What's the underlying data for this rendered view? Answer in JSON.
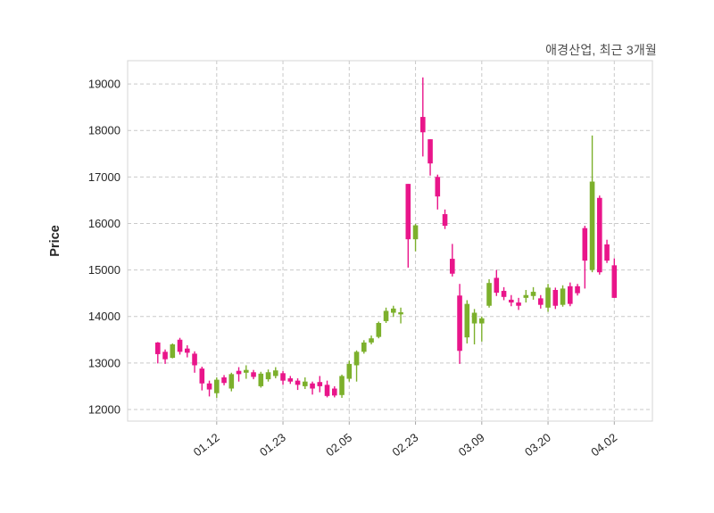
{
  "chart_data": {
    "type": "candlestick",
    "title": "애경산업, 최근 3개월",
    "ylabel": "Price",
    "grid": true,
    "legend": "none",
    "ylim": [
      11750,
      19500
    ],
    "y_ticks": [
      12000,
      13000,
      14000,
      15000,
      16000,
      17000,
      18000,
      19000
    ],
    "x_tick_labels": [
      "01.12",
      "01.23",
      "02.05",
      "02.23",
      "03.09",
      "03.20",
      "04.02"
    ],
    "x_tick_indices": [
      8,
      17,
      26,
      35,
      44,
      53,
      62
    ],
    "candle_format": [
      "open",
      "high",
      "low",
      "close"
    ],
    "colors": {
      "up": "#7cb02c",
      "down": "#e9158a",
      "grid": "#c9c9c9",
      "border": "#d4d4d4",
      "tick_mark": "#a6a6a6",
      "tick_text": "#262626",
      "title_text": "#4d4d4d",
      "background": "#ffffff"
    },
    "candles": [
      [
        13440,
        13450,
        12990,
        13190
      ],
      [
        13240,
        13290,
        12980,
        13080
      ],
      [
        13110,
        13420,
        13100,
        13400
      ],
      [
        13500,
        13540,
        13180,
        13240
      ],
      [
        13310,
        13380,
        13120,
        13220
      ],
      [
        13200,
        13250,
        12790,
        12950
      ],
      [
        12880,
        12920,
        12410,
        12560
      ],
      [
        12560,
        12620,
        12280,
        12430
      ],
      [
        12350,
        12690,
        12250,
        12640
      ],
      [
        12690,
        12740,
        12520,
        12570
      ],
      [
        12450,
        12790,
        12390,
        12760
      ],
      [
        12830,
        12910,
        12600,
        12760
      ],
      [
        12790,
        12950,
        12660,
        12850
      ],
      [
        12800,
        12850,
        12650,
        12700
      ],
      [
        12500,
        12810,
        12470,
        12770
      ],
      [
        12650,
        12860,
        12600,
        12800
      ],
      [
        12720,
        12910,
        12670,
        12840
      ],
      [
        12780,
        12830,
        12530,
        12620
      ],
      [
        12670,
        12720,
        12550,
        12600
      ],
      [
        12620,
        12670,
        12420,
        12530
      ],
      [
        12500,
        12690,
        12440,
        12600
      ],
      [
        12560,
        12600,
        12320,
        12450
      ],
      [
        12590,
        12720,
        12370,
        12500
      ],
      [
        12530,
        12620,
        12260,
        12290
      ],
      [
        12450,
        12500,
        12260,
        12300
      ],
      [
        12310,
        12750,
        12250,
        12720
      ],
      [
        12660,
        13050,
        12600,
        12980
      ],
      [
        12950,
        13270,
        12600,
        13240
      ],
      [
        13240,
        13490,
        13200,
        13440
      ],
      [
        13440,
        13590,
        13400,
        13530
      ],
      [
        13560,
        13890,
        13530,
        13860
      ],
      [
        13900,
        14190,
        13860,
        14120
      ],
      [
        14080,
        14230,
        13990,
        14170
      ],
      [
        14045,
        14190,
        13850,
        14090
      ],
      [
        16850,
        16850,
        15050,
        15660
      ],
      [
        15660,
        15990,
        15400,
        15960
      ],
      [
        18290,
        19140,
        17440,
        17960
      ],
      [
        17810,
        17810,
        17030,
        17290
      ],
      [
        17000,
        17050,
        16300,
        16580
      ],
      [
        16200,
        16300,
        15880,
        15950
      ],
      [
        15240,
        15560,
        14860,
        14920
      ],
      [
        14450,
        14700,
        12980,
        13260
      ],
      [
        13550,
        14350,
        13420,
        14270
      ],
      [
        13850,
        14160,
        13400,
        14080
      ],
      [
        13850,
        14000,
        13460,
        13960
      ],
      [
        14230,
        14800,
        14190,
        14720
      ],
      [
        14830,
        15000,
        14440,
        14510
      ],
      [
        14550,
        14630,
        14350,
        14420
      ],
      [
        14360,
        14460,
        14220,
        14300
      ],
      [
        14300,
        14400,
        14140,
        14230
      ],
      [
        14400,
        14570,
        14300,
        14460
      ],
      [
        14440,
        14630,
        14360,
        14530
      ],
      [
        14390,
        14460,
        14170,
        14250
      ],
      [
        14190,
        14700,
        14100,
        14620
      ],
      [
        14570,
        14620,
        14160,
        14230
      ],
      [
        14250,
        14670,
        14210,
        14600
      ],
      [
        14650,
        14730,
        14220,
        14270
      ],
      [
        14650,
        14700,
        14450,
        14500
      ],
      [
        15900,
        15950,
        14600,
        15200
      ],
      [
        15000,
        17890,
        14950,
        16900
      ],
      [
        16550,
        16600,
        14900,
        14950
      ],
      [
        15550,
        15650,
        15150,
        15200
      ],
      [
        15100,
        15250,
        14400,
        14400
      ]
    ]
  }
}
